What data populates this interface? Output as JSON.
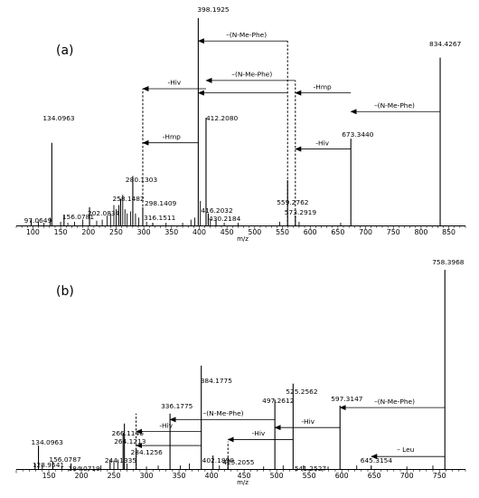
{
  "chart_data": [
    {
      "type": "bar",
      "panel_label": "(a)",
      "xlabel": "m/z",
      "ylabel": "",
      "xlim": [
        70,
        880
      ],
      "xticks": [
        100,
        150,
        200,
        250,
        300,
        350,
        400,
        450,
        500,
        550,
        600,
        650,
        700,
        750,
        800,
        850
      ],
      "grid": false,
      "legend": "none",
      "peaks": [
        {
          "mz": 97.0649,
          "rel": 0.03,
          "label": "97.0649"
        },
        {
          "mz": 134.0963,
          "rel": 0.4,
          "label": "134.0963"
        },
        {
          "mz": 156.0781,
          "rel": 0.05,
          "label": "156.0781"
        },
        {
          "mz": 202.0834,
          "rel": 0.09,
          "label": "202.0834"
        },
        {
          "mz": 258.1482,
          "rel": 0.13,
          "label": "258.1482"
        },
        {
          "mz": 280.1303,
          "rel": 0.24,
          "label": "280.1303"
        },
        {
          "mz": 298.1409,
          "rel": 0.09,
          "label": "298.1409"
        },
        {
          "mz": 316.1511,
          "rel": 0.015,
          "label": "316.1511"
        },
        {
          "mz": 398.1925,
          "rel": 1.0,
          "label": "398.1925"
        },
        {
          "mz": 412.208,
          "rel": 0.52,
          "label": "412.2080"
        },
        {
          "mz": 416.2032,
          "rel": 0.06,
          "label": "416.2032"
        },
        {
          "mz": 430.2184,
          "rel": 0.03,
          "label": "430.2184"
        },
        {
          "mz": 559.2762,
          "rel": 0.22,
          "label": "559.2762"
        },
        {
          "mz": 573.2919,
          "rel": 0.05,
          "label": "573.2919"
        },
        {
          "mz": 673.344,
          "rel": 0.42,
          "label": "673.3440"
        },
        {
          "mz": 834.4267,
          "rel": 0.81,
          "label": "834.4267"
        }
      ],
      "minor_peaks": [
        {
          "mz": 110,
          "rel": 0.02
        },
        {
          "mz": 120,
          "rel": 0.015
        },
        {
          "mz": 131,
          "rel": 0.04
        },
        {
          "mz": 150,
          "rel": 0.02
        },
        {
          "mz": 163,
          "rel": 0.015
        },
        {
          "mz": 175,
          "rel": 0.02
        },
        {
          "mz": 190,
          "rel": 0.03
        },
        {
          "mz": 215,
          "rel": 0.025
        },
        {
          "mz": 225,
          "rel": 0.03
        },
        {
          "mz": 234,
          "rel": 0.05
        },
        {
          "mz": 240,
          "rel": 0.06
        },
        {
          "mz": 246,
          "rel": 0.1
        },
        {
          "mz": 250,
          "rel": 0.08
        },
        {
          "mz": 255,
          "rel": 0.1
        },
        {
          "mz": 262,
          "rel": 0.15
        },
        {
          "mz": 266,
          "rel": 0.08
        },
        {
          "mz": 270,
          "rel": 0.06
        },
        {
          "mz": 276,
          "rel": 0.07
        },
        {
          "mz": 285,
          "rel": 0.06
        },
        {
          "mz": 291,
          "rel": 0.04
        },
        {
          "mz": 305,
          "rel": 0.02
        },
        {
          "mz": 340,
          "rel": 0.015
        },
        {
          "mz": 370,
          "rel": 0.015
        },
        {
          "mz": 385,
          "rel": 0.03
        },
        {
          "mz": 392,
          "rel": 0.04
        },
        {
          "mz": 402,
          "rel": 0.12
        },
        {
          "mz": 420,
          "rel": 0.03
        },
        {
          "mz": 445,
          "rel": 0.015
        },
        {
          "mz": 470,
          "rel": 0.015
        },
        {
          "mz": 545,
          "rel": 0.02
        },
        {
          "mz": 580,
          "rel": 0.02
        },
        {
          "mz": 655,
          "rel": 0.015
        }
      ],
      "guides": [
        {
          "mz": 298.1409,
          "top": 0.66
        },
        {
          "mz": 559.2762,
          "top": 0.89
        },
        {
          "mz": 573.2919,
          "top": 0.7
        }
      ],
      "annotations": [
        {
          "from": 559.2762,
          "to": 398.1925,
          "y": 0.89,
          "label": "–(N-Me-Phe)",
          "lx": 485,
          "ly": 0.9
        },
        {
          "from": 573.2919,
          "to": 412.208,
          "y": 0.7,
          "label": "–(N-Me-Phe)",
          "lx": 495,
          "ly": 0.71
        },
        {
          "from": 412.208,
          "to": 298.1409,
          "y": 0.66,
          "label": "-Hiv",
          "lx": 355,
          "ly": 0.67
        },
        {
          "from": 559.2762,
          "to": 398.1925,
          "y": 0.64,
          "label": "",
          "lx": 0,
          "ly": 0
        },
        {
          "from": 673.344,
          "to": 573.2919,
          "y": 0.64,
          "label": "-Hmp",
          "lx": 622,
          "ly": 0.65
        },
        {
          "from": 398.1925,
          "to": 298.1409,
          "y": 0.4,
          "label": "-Hmp",
          "lx": 350,
          "ly": 0.41
        },
        {
          "from": 673.344,
          "to": 573.2919,
          "y": 0.37,
          "label": "-Hiv",
          "lx": 622,
          "ly": 0.38
        },
        {
          "from": 834.4267,
          "to": 673.344,
          "y": 0.55,
          "label": "–(N-Me-Phe)",
          "lx": 752,
          "ly": 0.56
        }
      ]
    },
    {
      "type": "bar",
      "panel_label": "(b)",
      "xlabel": "m/z",
      "ylabel": "",
      "xlim": [
        100,
        790
      ],
      "xticks": [
        150,
        200,
        250,
        300,
        350,
        400,
        450,
        500,
        550,
        600,
        650,
        700,
        750
      ],
      "grid": false,
      "legend": "none",
      "peaks": [
        {
          "mz": 128.9541,
          "rel": 0.03,
          "label": "128.9541"
        },
        {
          "mz": 134.0963,
          "rel": 0.12,
          "label": "134.0963"
        },
        {
          "mz": 156.0787,
          "rel": 0.04,
          "label": "156.0787"
        },
        {
          "mz": 184.0719,
          "rel": 0.03,
          "label": "184.0719"
        },
        {
          "mz": 244.1335,
          "rel": 0.05,
          "label": "244.1335"
        },
        {
          "mz": 264.1213,
          "rel": 0.18,
          "label": "264.1213"
        },
        {
          "mz": 266.1146,
          "rel": 0.23,
          "label": "266.1146"
        },
        {
          "mz": 284.1256,
          "rel": 0.1,
          "label": "284.1256"
        },
        {
          "mz": 336.1775,
          "rel": 0.28,
          "label": "336.1775"
        },
        {
          "mz": 384.1775,
          "rel": 0.52,
          "label": "384.1775"
        },
        {
          "mz": 402.189,
          "rel": 0.07,
          "label": "402.1890"
        },
        {
          "mz": 425.2055,
          "rel": 0.06,
          "label": "425.2055"
        },
        {
          "mz": 497.2612,
          "rel": 0.35,
          "label": "497.2612"
        },
        {
          "mz": 525.2562,
          "rel": 0.43,
          "label": "525.2562"
        },
        {
          "mz": 541.2527,
          "rel": 0.02,
          "label": "541.2527"
        },
        {
          "mz": 597.3147,
          "rel": 0.32,
          "label": "597.3147"
        },
        {
          "mz": 645.3154,
          "rel": 0.02,
          "label": "645.3154"
        },
        {
          "mz": 758.3968,
          "rel": 1.0,
          "label": "758.3968"
        }
      ],
      "minor_peaks": [
        {
          "mz": 140,
          "rel": 0.02
        },
        {
          "mz": 170,
          "rel": 0.015
        },
        {
          "mz": 200,
          "rel": 0.015
        },
        {
          "mz": 230,
          "rel": 0.02
        },
        {
          "mz": 250,
          "rel": 0.04
        },
        {
          "mz": 256,
          "rel": 0.05
        },
        {
          "mz": 270,
          "rel": 0.03
        },
        {
          "mz": 300,
          "rel": 0.015
        },
        {
          "mz": 318,
          "rel": 0.02
        },
        {
          "mz": 352,
          "rel": 0.02
        },
        {
          "mz": 366,
          "rel": 0.03
        },
        {
          "mz": 412,
          "rel": 0.02
        },
        {
          "mz": 480,
          "rel": 0.015
        },
        {
          "mz": 510,
          "rel": 0.02
        },
        {
          "mz": 579,
          "rel": 0.015
        },
        {
          "mz": 623,
          "rel": 0.02
        },
        {
          "mz": 700,
          "rel": 0.015
        },
        {
          "mz": 740,
          "rel": 0.02
        }
      ],
      "guides": [
        {
          "mz": 284.1256,
          "top": 0.28
        },
        {
          "mz": 425.2055,
          "top": 0.14
        }
      ],
      "annotations": [
        {
          "from": 758.3968,
          "to": 597.3147,
          "y": 0.31,
          "label": "–(N-Me-Phe)",
          "lx": 681,
          "ly": 0.32
        },
        {
          "from": 497.2612,
          "to": 336.1775,
          "y": 0.25,
          "label": "–(N-Me-Phe)",
          "lx": 418,
          "ly": 0.26
        },
        {
          "from": 597.3147,
          "to": 497.2612,
          "y": 0.21,
          "label": "-Hiv",
          "lx": 548,
          "ly": 0.22
        },
        {
          "from": 384.1775,
          "to": 284.1256,
          "y": 0.19,
          "label": "-Hiv",
          "lx": 330,
          "ly": 0.2
        },
        {
          "from": 525.2562,
          "to": 425.2055,
          "y": 0.15,
          "label": "-Hiv",
          "lx": 472,
          "ly": 0.16
        },
        {
          "from": 384.1775,
          "to": 284.1256,
          "y": 0.12,
          "label": "",
          "lx": 0,
          "ly": 0
        },
        {
          "from": 758.3968,
          "to": 645.3154,
          "y": 0.065,
          "label": "– Leu",
          "lx": 698,
          "ly": 0.08
        }
      ]
    }
  ]
}
